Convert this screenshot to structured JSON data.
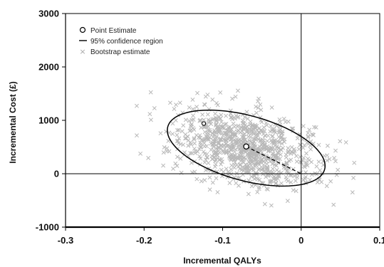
{
  "chart_data": {
    "type": "scatter",
    "title": "",
    "xlabel": "Incremental QALYs",
    "ylabel": "Incremental Cost (£)",
    "xlim": [
      -0.3,
      0.1
    ],
    "ylim": [
      -1000,
      3000
    ],
    "x_ticks": [
      -0.3,
      -0.2,
      -0.1,
      0,
      0.1
    ],
    "x_tick_labels": [
      "-0.3",
      "-0.2",
      "-0.1",
      "0",
      "0.1"
    ],
    "y_ticks": [
      -1000,
      0,
      1000,
      2000,
      3000
    ],
    "y_tick_labels": [
      "-1000",
      "0",
      "1000",
      "2000",
      "3000"
    ],
    "grid": false,
    "legend_position": "top-left",
    "legend": {
      "point_estimate": "Point Estimate",
      "confidence_region": "95% confidence region",
      "bootstrap": "Bootstrap estimate"
    },
    "colors": {
      "bootstrap": "#b8b8b8",
      "ellipse": "#000000",
      "axes": "#000000"
    },
    "point_estimate": {
      "x": -0.07,
      "y": 510
    },
    "highlighted_point": {
      "x": -0.124,
      "y": 940
    },
    "confidence_region": {
      "center_x": -0.07,
      "center_y": 480,
      "semi_axis_major_x": 0.097,
      "semi_axis_major_y": -485,
      "semi_axis_minor_x": 0.026,
      "semi_axis_minor_y": 520
    },
    "dashed_segment": {
      "from": [
        -0.07,
        510
      ],
      "to": [
        0,
        0
      ]
    },
    "bootstrap": {
      "count": 1000,
      "mean_x": -0.07,
      "mean_y": 480,
      "sd_x": 0.046,
      "sd_y": 360,
      "correlation": -0.35,
      "x_range": [
        -0.21,
        0.085
      ],
      "y_range": [
        -780,
        1600
      ]
    }
  }
}
